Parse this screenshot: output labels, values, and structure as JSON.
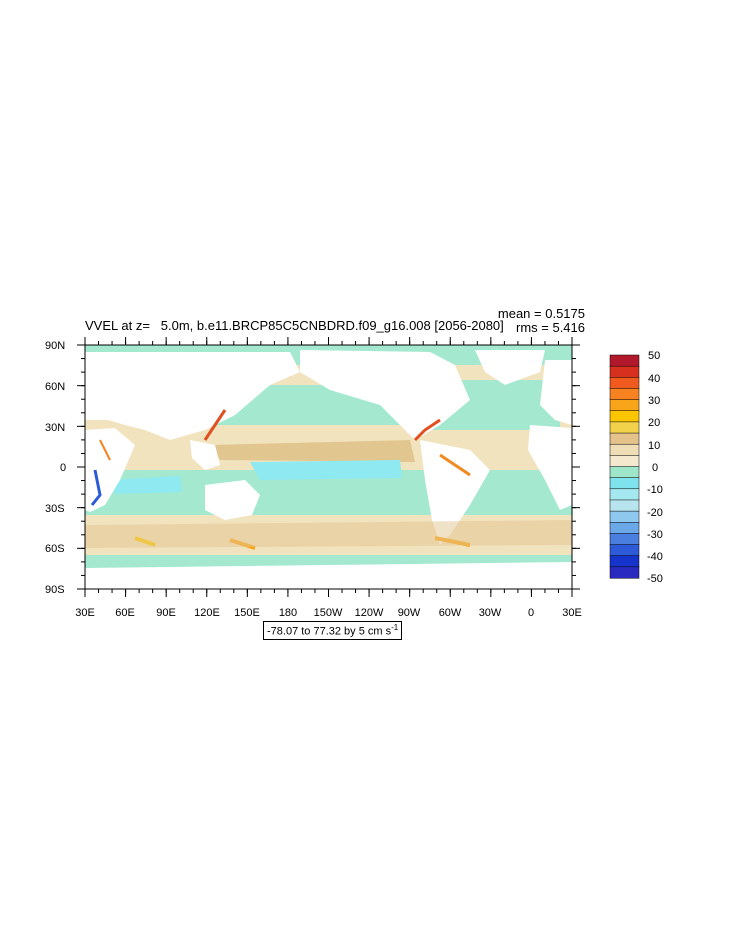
{
  "title": "VVEL at z=   5.0m, b.e11.BRCP85C5CNBDRD.f09_g16.008 [2056-2080]",
  "stats": {
    "mean": "mean = 0.5175",
    "rms": "rms = 5.416"
  },
  "lat_labels": [
    "90N",
    "60N",
    "30N",
    "0",
    "30S",
    "60S",
    "90S"
  ],
  "lon_labels": [
    "30E",
    "60E",
    "90E",
    "120E",
    "150E",
    "180",
    "150W",
    "120W",
    "90W",
    "60W",
    "30W",
    "0",
    "30E"
  ],
  "range_text": "-78.07 to 77.32 by 5 cm s",
  "range_superscript": "-1",
  "colorbar": {
    "labels": [
      "50",
      "40",
      "30",
      "20",
      "10",
      "0",
      "-10",
      "-20",
      "-30",
      "-40",
      "-50"
    ],
    "colors": [
      "#b2182b",
      "#d7301f",
      "#f15a1e",
      "#f7821f",
      "#f9a51a",
      "#fbc600",
      "#f2d24a",
      "#e4c28a",
      "#efddb6",
      "#f4e9cf",
      "#9ee6c9",
      "#7fe3ee",
      "#a6e8ef",
      "#b7e4ee",
      "#8fc8ee",
      "#6aa8e8",
      "#4a7fe0",
      "#2d5ad8",
      "#1634cc",
      "#2a2ac0"
    ]
  },
  "colors": {
    "land": "#ffffff",
    "ocean_base": "#f0dfb8",
    "positive_high": "#b2182b",
    "negative_low": "#1634cc"
  }
}
